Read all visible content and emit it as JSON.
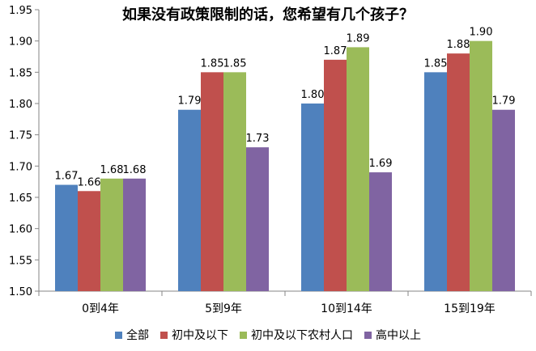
{
  "chart_data": {
    "type": "bar",
    "title": "如果没有政策限制的话，您希望有几个孩子？",
    "categories": [
      "0到4年",
      "5到9年",
      "10到14年",
      "15到19年"
    ],
    "series": [
      {
        "name": "全部",
        "color": "#4F81BD",
        "values": [
          1.67,
          1.79,
          1.8,
          1.85
        ]
      },
      {
        "name": "初中及以下",
        "color": "#C0504D",
        "values": [
          1.66,
          1.85,
          1.87,
          1.88
        ]
      },
      {
        "name": "初中及以下农村人口",
        "color": "#9BBB59",
        "values": [
          1.68,
          1.85,
          1.89,
          1.9
        ]
      },
      {
        "name": "高中以上",
        "color": "#8064A2",
        "values": [
          1.68,
          1.73,
          1.69,
          1.79
        ]
      }
    ],
    "ylim": [
      1.5,
      1.95
    ],
    "yticks": [
      "1.50",
      "1.55",
      "1.60",
      "1.65",
      "1.70",
      "1.75",
      "1.80",
      "1.85",
      "1.90",
      "1.95"
    ],
    "xlabel": "",
    "ylabel": "",
    "legend_position": "bottom",
    "grid": false
  }
}
